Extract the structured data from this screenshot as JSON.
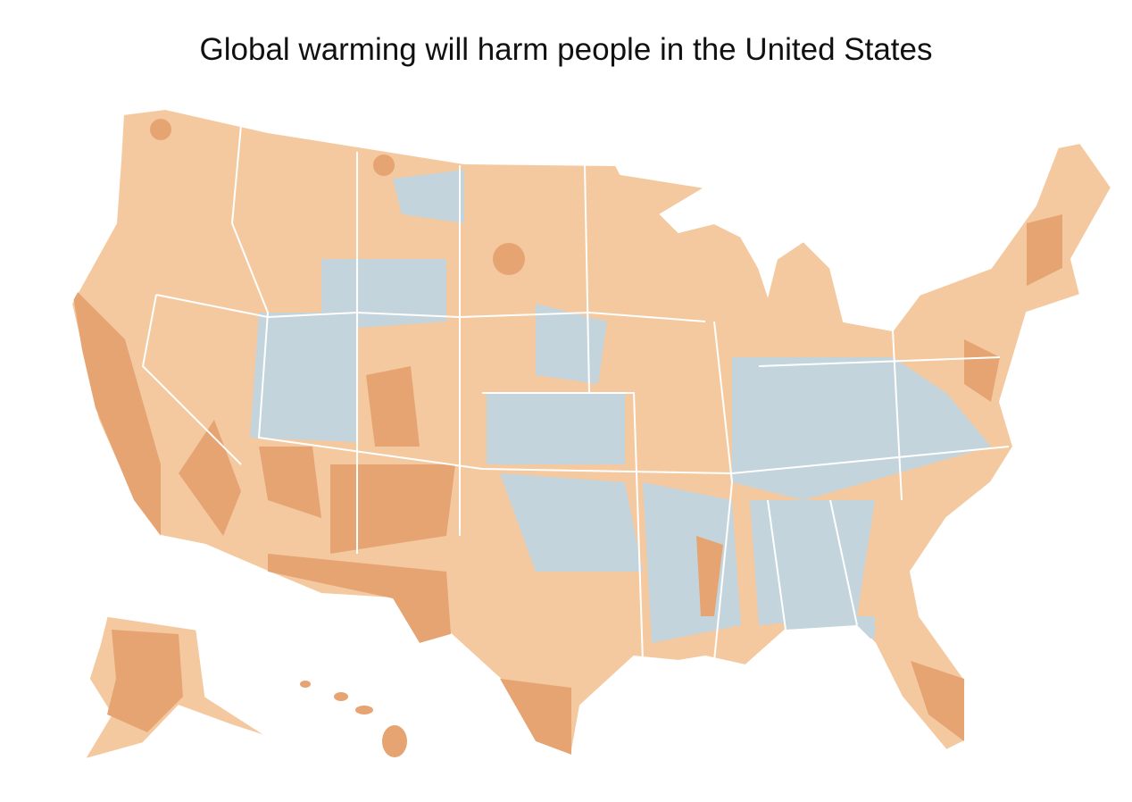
{
  "title": "Global warming will harm people in the United States"
}
